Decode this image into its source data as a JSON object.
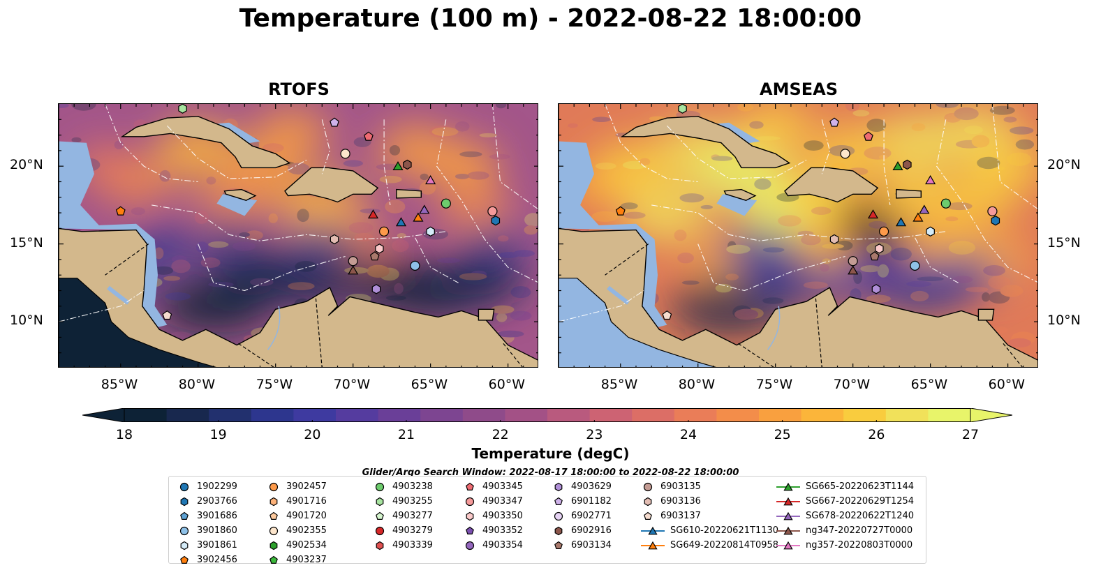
{
  "title": "Temperature (100 m) - 2022-08-22 18:00:00",
  "panels": [
    {
      "name": "RTOFS"
    },
    {
      "name": "AMSEAS"
    }
  ],
  "axes": {
    "lon_ticks": [
      "85°W",
      "80°W",
      "75°W",
      "70°W",
      "65°W",
      "60°W"
    ],
    "lat_ticks": [
      "20°N",
      "15°N",
      "10°N"
    ]
  },
  "colorbar": {
    "label": "Temperature (degC)",
    "ticks": [
      "18",
      "19",
      "20",
      "21",
      "22",
      "23",
      "24",
      "25",
      "26",
      "27"
    ],
    "range": [
      18,
      27
    ],
    "colors": [
      "#0d2236",
      "#18284e",
      "#22306e",
      "#2d368e",
      "#3e3aa0",
      "#553c9f",
      "#6a3f98",
      "#7d4591",
      "#8f4b8a",
      "#a35186",
      "#b95a7e",
      "#cd6373",
      "#dc6e66",
      "#ea7d58",
      "#f38d4a",
      "#f9a03f",
      "#fbb53a",
      "#f9cc3e",
      "#f1e15a",
      "#e8f46a"
    ]
  },
  "search_window": "Glider/Argo Search Window: 2022-08-17 18:00:00 to 2022-08-22 18:00:00",
  "legend": [
    [
      {
        "label": "1902299",
        "marker": "circle",
        "color": "#1f77b4"
      },
      {
        "label": "2903766",
        "marker": "hexagon",
        "color": "#1f77b4"
      },
      {
        "label": "3901686",
        "marker": "pentagon",
        "color": "#5fa2d4"
      },
      {
        "label": "3901860",
        "marker": "circle",
        "color": "#8ec1e8"
      },
      {
        "label": "3901861",
        "marker": "hexagon",
        "color": "#d4ebf8"
      },
      {
        "label": "3902456",
        "marker": "pentagon",
        "color": "#ff7f0e"
      }
    ],
    [
      {
        "label": "3902457",
        "marker": "circle",
        "color": "#fd9a4a"
      },
      {
        "label": "4901716",
        "marker": "hexagon",
        "color": "#fdb27a"
      },
      {
        "label": "4901720",
        "marker": "pentagon",
        "color": "#fdc99d"
      },
      {
        "label": "4902355",
        "marker": "circle",
        "color": "#fde6cc"
      },
      {
        "label": "4902534",
        "marker": "hexagon",
        "color": "#2ca02c"
      },
      {
        "label": "4903237",
        "marker": "pentagon",
        "color": "#3cb83c"
      }
    ],
    [
      {
        "label": "4903238",
        "marker": "circle",
        "color": "#6dcc6d"
      },
      {
        "label": "4903255",
        "marker": "hexagon",
        "color": "#a8e4a0"
      },
      {
        "label": "4903277",
        "marker": "pentagon",
        "color": "#d5f5ce"
      },
      {
        "label": "4903279",
        "marker": "circle",
        "color": "#d62728"
      },
      {
        "label": "4903339",
        "marker": "hexagon",
        "color": "#e05050"
      }
    ],
    [
      {
        "label": "4903345",
        "marker": "pentagon",
        "color": "#ef6b72"
      },
      {
        "label": "4903347",
        "marker": "circle",
        "color": "#f59a9a"
      },
      {
        "label": "4903350",
        "marker": "hexagon",
        "color": "#fbcaca"
      },
      {
        "label": "4903352",
        "marker": "pentagon",
        "color": "#7b4fb0"
      },
      {
        "label": "4903354",
        "marker": "circle",
        "color": "#9467bd"
      }
    ],
    [
      {
        "label": "4903629",
        "marker": "hexagon",
        "color": "#b08fd8"
      },
      {
        "label": "6901182",
        "marker": "pentagon",
        "color": "#cfb2ea"
      },
      {
        "label": "6902771",
        "marker": "circle",
        "color": "#e6d3f4"
      },
      {
        "label": "6902916",
        "marker": "hexagon",
        "color": "#8c564b"
      },
      {
        "label": "6903134",
        "marker": "pentagon",
        "color": "#a9796c"
      }
    ],
    [
      {
        "label": "6903135",
        "marker": "circle",
        "color": "#c49c94"
      },
      {
        "label": "6903136",
        "marker": "hexagon",
        "color": "#e3bdb3"
      },
      {
        "label": "6903137",
        "marker": "pentagon",
        "color": "#f6dccf"
      },
      {
        "label": "SG610-20220621T1130",
        "marker": "triangle-line",
        "color": "#1f77b4"
      },
      {
        "label": "SG649-20220814T0958",
        "marker": "triangle-line",
        "color": "#ff7f0e"
      }
    ],
    [
      {
        "label": "SG665-20220623T1144",
        "marker": "triangle-line",
        "color": "#2ca02c"
      },
      {
        "label": "SG667-20220629T1254",
        "marker": "triangle-line",
        "color": "#d62728"
      },
      {
        "label": "SG678-20220622T1240",
        "marker": "triangle-line",
        "color": "#9467bd"
      },
      {
        "label": "ng347-20220727T0000",
        "marker": "triangle-line",
        "color": "#8c564b"
      },
      {
        "label": "ng357-20220803T0000",
        "marker": "triangle-line",
        "color": "#e377c2"
      }
    ]
  ],
  "observations": [
    {
      "id": "3902456",
      "lon": -85.0,
      "lat": 17.1
    },
    {
      "id": "6903137",
      "lon": -82.0,
      "lat": 10.4
    },
    {
      "id": "4903350",
      "lon": -68.3,
      "lat": 14.7
    },
    {
      "id": "4903345",
      "lon": -69.0,
      "lat": 21.9
    },
    {
      "id": "6901182",
      "lon": -71.2,
      "lat": 22.8
    },
    {
      "id": "4902355",
      "lon": -70.5,
      "lat": 20.8
    },
    {
      "id": "6902916",
      "lon": -66.5,
      "lat": 20.1
    },
    {
      "id": "3902457",
      "lon": -68.0,
      "lat": 15.8
    },
    {
      "id": "3901861",
      "lon": -65.0,
      "lat": 15.8
    },
    {
      "id": "3901860",
      "lon": -66.0,
      "lat": 13.6
    },
    {
      "id": "4903238",
      "lon": -64.0,
      "lat": 17.6
    },
    {
      "id": "4903347",
      "lon": -61.0,
      "lat": 17.1
    },
    {
      "id": "2903766",
      "lon": -60.8,
      "lat": 16.5
    },
    {
      "id": "6903135",
      "lon": -70.0,
      "lat": 13.9
    },
    {
      "id": "6903136",
      "lon": -71.2,
      "lat": 15.3
    },
    {
      "id": "4903629",
      "lon": -68.5,
      "lat": 12.1
    },
    {
      "id": "6903134",
      "lon": -68.6,
      "lat": 14.2
    },
    {
      "id": "4903255",
      "lon": -81.0,
      "lat": 23.7
    },
    {
      "id": "SG665-20220623T1144",
      "lon": -67.1,
      "lat": 20.0
    },
    {
      "id": "SG667-20220629T1254",
      "lon": -68.7,
      "lat": 16.9
    },
    {
      "id": "SG610-20220621T1130",
      "lon": -66.9,
      "lat": 16.4
    },
    {
      "id": "SG649-20220814T0958",
      "lon": -65.8,
      "lat": 16.7
    },
    {
      "id": "SG678-20220622T1240",
      "lon": -65.4,
      "lat": 17.2
    },
    {
      "id": "ng357-20220803T0000",
      "lon": -65.0,
      "lat": 19.1
    },
    {
      "id": "ng347-20220727T0000",
      "lon": -70.0,
      "lat": 13.3
    }
  ]
}
